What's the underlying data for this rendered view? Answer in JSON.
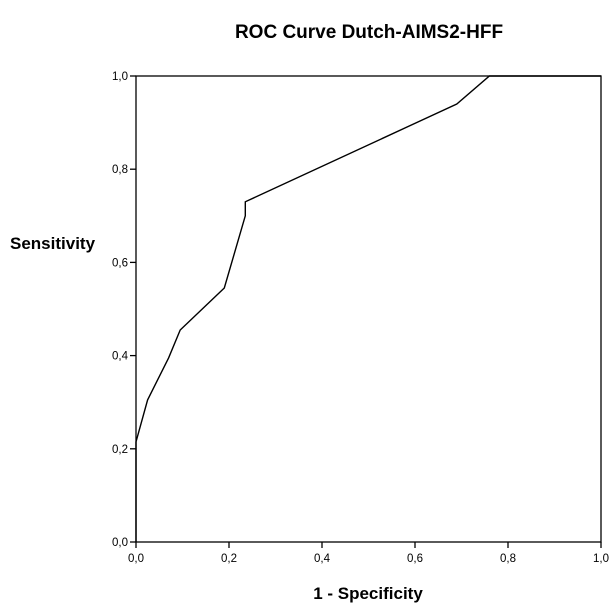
{
  "chart_data": {
    "type": "line",
    "title": "ROC Curve Dutch-AIMS2-HFF",
    "xlabel": "1 - Specificity",
    "ylabel": "Sensitivity",
    "xlim": [
      0.0,
      1.0
    ],
    "ylim": [
      0.0,
      1.0
    ],
    "x_ticks": [
      "0,0",
      "0,2",
      "0,4",
      "0,6",
      "0,8",
      "1,0"
    ],
    "y_ticks": [
      "0,0",
      "0,2",
      "0,4",
      "0,6",
      "0,8",
      "1,0"
    ],
    "grid": false,
    "legend": "none",
    "series": [
      {
        "color": "#000000",
        "points": [
          [
            0.0,
            0.0
          ],
          [
            0.0,
            0.215
          ],
          [
            0.025,
            0.305
          ],
          [
            0.07,
            0.395
          ],
          [
            0.095,
            0.455
          ],
          [
            0.19,
            0.545
          ],
          [
            0.235,
            0.7
          ],
          [
            0.235,
            0.73
          ],
          [
            0.69,
            0.94
          ],
          [
            0.76,
            1.0
          ],
          [
            1.0,
            1.0
          ]
        ]
      }
    ]
  }
}
